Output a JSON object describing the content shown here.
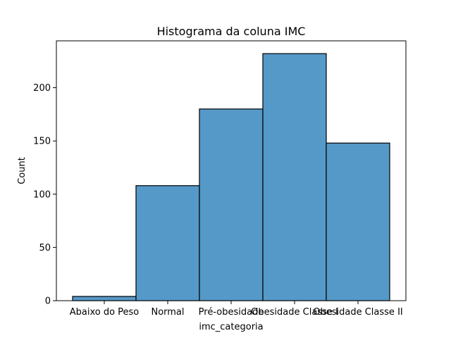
{
  "chart_data": {
    "type": "bar",
    "title": "Histograma da coluna IMC",
    "xlabel": "imc_categoria",
    "ylabel": "Count",
    "categories": [
      "Abaixo do Peso",
      "Normal",
      "Pré-obesidade",
      "Obesidade Classe I",
      "Obesidade Classe II"
    ],
    "values": [
      4,
      108,
      180,
      232,
      148
    ],
    "ylim": [
      0,
      244
    ],
    "yticks": [
      0,
      50,
      100,
      150,
      200
    ],
    "bar_color": "#5599c8",
    "grid": false,
    "legend": "none"
  }
}
